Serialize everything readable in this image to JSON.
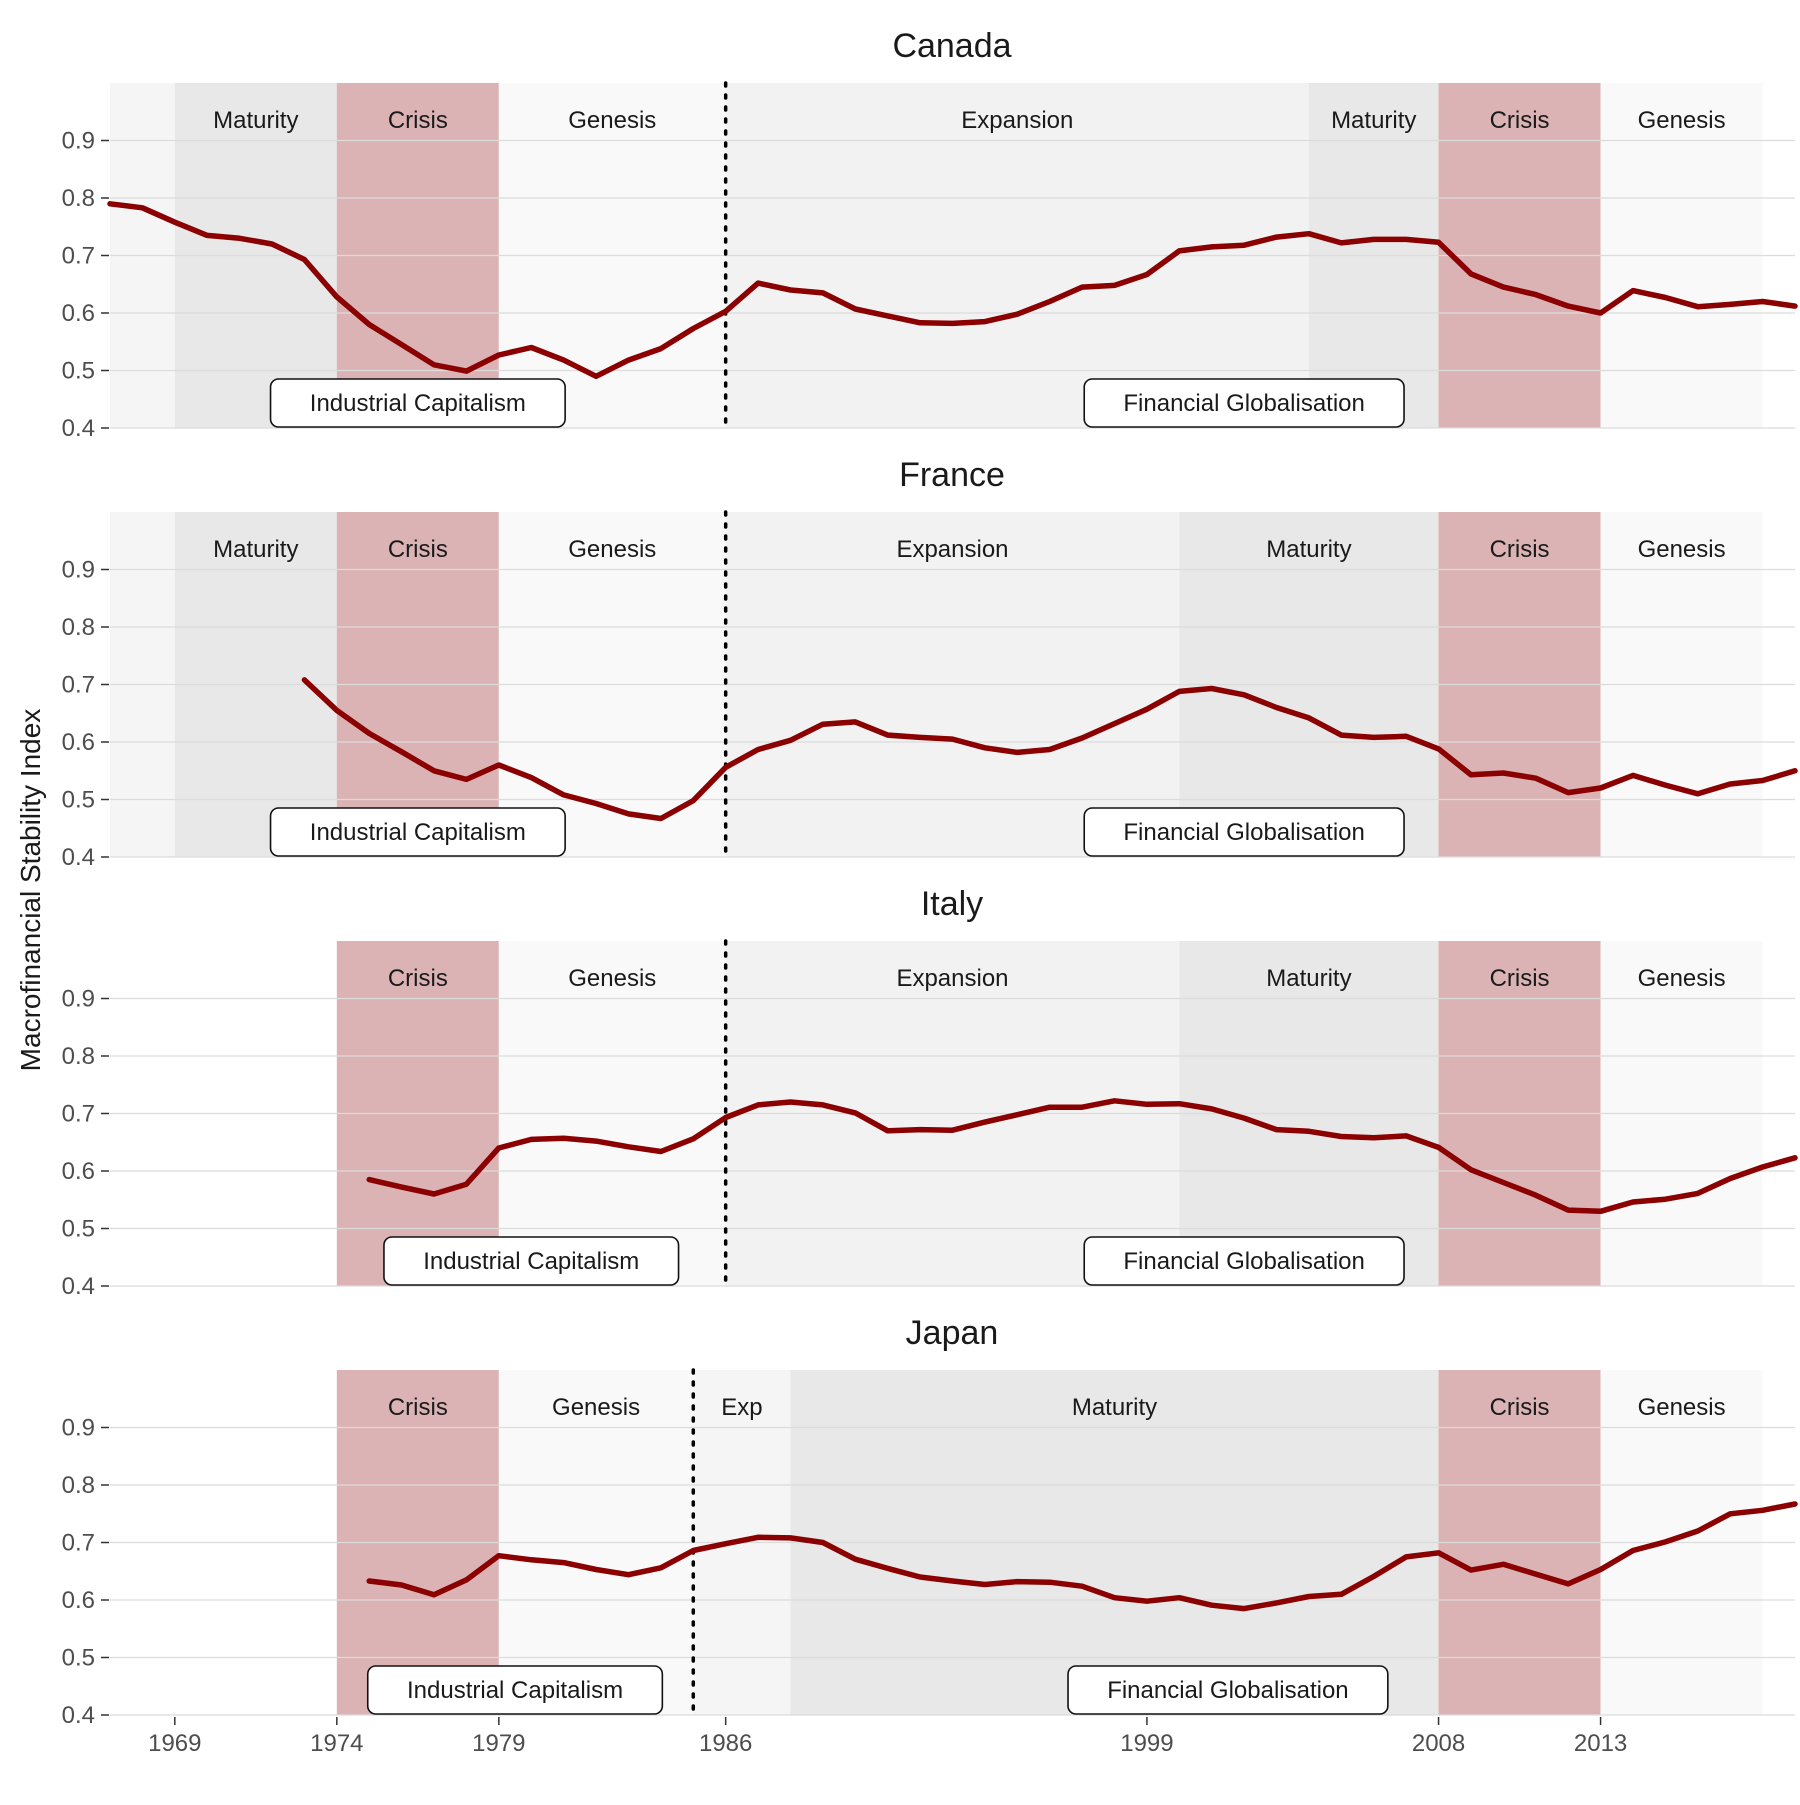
{
  "chart_data": {
    "type": "line",
    "ylabel": "Macrofinancial Stability Index",
    "xlabel": "",
    "x_ticks": [
      1969,
      1974,
      1979,
      1986,
      1999,
      2008,
      2013
    ],
    "y_ticks": [
      0.4,
      0.5,
      0.6,
      0.7,
      0.8,
      0.9
    ],
    "ylim": [
      0.4,
      1.0
    ],
    "xlim": [
      1967,
      2019
    ],
    "grid": true,
    "colors": {
      "line": "#8b0000",
      "crisis": "#dbb3b5",
      "maturity": "#e8e8e8",
      "genesis": "#f9f9f9",
      "expansion": "#f2f2f2",
      "edge": "#f5f5f5"
    },
    "panels": [
      {
        "title": "Canada",
        "regime_break": 1986,
        "phases": [
          {
            "label": "",
            "kind": "edge",
            "start": 1967,
            "end": 1969
          },
          {
            "label": "Maturity",
            "kind": "maturity",
            "start": 1969,
            "end": 1974
          },
          {
            "label": "Crisis",
            "kind": "crisis",
            "start": 1974,
            "end": 1979
          },
          {
            "label": "Genesis",
            "kind": "genesis",
            "start": 1979,
            "end": 1986
          },
          {
            "label": "Expansion",
            "kind": "expansion",
            "start": 1986,
            "end": 2004
          },
          {
            "label": "Maturity",
            "kind": "maturity",
            "start": 2004,
            "end": 2008
          },
          {
            "label": "Crisis",
            "kind": "crisis",
            "start": 2008,
            "end": 2013
          },
          {
            "label": "Genesis",
            "kind": "genesis",
            "start": 2013,
            "end": 2018
          },
          {
            "label": "",
            "kind": "edge",
            "start": 2018,
            "end": 2019
          }
        ],
        "eras": [
          {
            "label": "Industrial Capitalism",
            "x": 1976.5
          },
          {
            "label": "Financial Globalisation",
            "x": 2002
          }
        ],
        "series": {
          "x": [
            1967,
            1968,
            1969,
            1970,
            1971,
            1972,
            1973,
            1974,
            1975,
            1976,
            1977,
            1978,
            1979,
            1980,
            1981,
            1982,
            1983,
            1984,
            1985,
            1986,
            1987,
            1988,
            1989,
            1990,
            1991,
            1992,
            1993,
            1994,
            1995,
            1996,
            1997,
            1998,
            1999,
            2000,
            2001,
            2002,
            2003,
            2004,
            2005,
            2006,
            2007,
            2008,
            2009,
            2010,
            2011,
            2012,
            2013,
            2014,
            2015,
            2016,
            2017,
            2018,
            2019
          ],
          "y": [
            0.79,
            0.783,
            0.758,
            0.735,
            0.73,
            0.72,
            0.693,
            0.628,
            0.58,
            0.545,
            0.51,
            0.499,
            0.527,
            0.54,
            0.518,
            0.49,
            0.518,
            0.538,
            0.573,
            0.603,
            0.652,
            0.64,
            0.635,
            0.607,
            0.595,
            0.583,
            0.582,
            0.585,
            0.598,
            0.62,
            0.645,
            0.648,
            0.667,
            0.708,
            0.715,
            0.718,
            0.732,
            0.738,
            0.722,
            0.728,
            0.728,
            0.723,
            0.668,
            0.645,
            0.632,
            0.612,
            0.6,
            0.639,
            0.627,
            0.611,
            0.615,
            0.62,
            0.612
          ]
        }
      },
      {
        "title": "France",
        "regime_break": 1986,
        "phases": [
          {
            "label": "",
            "kind": "edge",
            "start": 1967,
            "end": 1969
          },
          {
            "label": "Maturity",
            "kind": "maturity",
            "start": 1969,
            "end": 1974
          },
          {
            "label": "Crisis",
            "kind": "crisis",
            "start": 1974,
            "end": 1979
          },
          {
            "label": "Genesis",
            "kind": "genesis",
            "start": 1979,
            "end": 1986
          },
          {
            "label": "Expansion",
            "kind": "expansion",
            "start": 1986,
            "end": 2000
          },
          {
            "label": "Maturity",
            "kind": "maturity",
            "start": 2000,
            "end": 2008
          },
          {
            "label": "Crisis",
            "kind": "crisis",
            "start": 2008,
            "end": 2013
          },
          {
            "label": "Genesis",
            "kind": "genesis",
            "start": 2013,
            "end": 2018
          },
          {
            "label": "",
            "kind": "edge",
            "start": 2018,
            "end": 2019
          }
        ],
        "eras": [
          {
            "label": "Industrial Capitalism",
            "x": 1976.5
          },
          {
            "label": "Financial Globalisation",
            "x": 2002
          }
        ],
        "series": {
          "x": [
            1973,
            1974,
            1975,
            1976,
            1977,
            1978,
            1979,
            1980,
            1981,
            1982,
            1983,
            1984,
            1985,
            1986,
            1987,
            1988,
            1989,
            1990,
            1991,
            1992,
            1993,
            1994,
            1995,
            1996,
            1997,
            1998,
            1999,
            2000,
            2001,
            2002,
            2003,
            2004,
            2005,
            2006,
            2007,
            2008,
            2009,
            2010,
            2011,
            2012,
            2013,
            2014,
            2015,
            2016,
            2017,
            2018,
            2019
          ],
          "y": [
            0.708,
            0.655,
            0.615,
            0.583,
            0.55,
            0.535,
            0.56,
            0.538,
            0.508,
            0.493,
            0.475,
            0.467,
            0.498,
            0.556,
            0.587,
            0.603,
            0.631,
            0.635,
            0.612,
            0.608,
            0.605,
            0.59,
            0.582,
            0.587,
            0.607,
            0.632,
            0.657,
            0.688,
            0.693,
            0.682,
            0.66,
            0.642,
            0.612,
            0.608,
            0.61,
            0.588,
            0.543,
            0.546,
            0.537,
            0.512,
            0.52,
            0.542,
            0.525,
            0.51,
            0.527,
            0.533,
            0.55
          ]
        }
      },
      {
        "title": "Italy",
        "regime_break": 1986,
        "phases": [
          {
            "label": "Crisis",
            "kind": "crisis",
            "start": 1974,
            "end": 1979
          },
          {
            "label": "Genesis",
            "kind": "genesis",
            "start": 1979,
            "end": 1986
          },
          {
            "label": "Expansion",
            "kind": "expansion",
            "start": 1986,
            "end": 2000
          },
          {
            "label": "Maturity",
            "kind": "maturity",
            "start": 2000,
            "end": 2008
          },
          {
            "label": "Crisis",
            "kind": "crisis",
            "start": 2008,
            "end": 2013
          },
          {
            "label": "Genesis",
            "kind": "genesis",
            "start": 2013,
            "end": 2018
          }
        ],
        "eras": [
          {
            "label": "Industrial Capitalism",
            "x": 1980
          },
          {
            "label": "Financial Globalisation",
            "x": 2002
          }
        ],
        "series": {
          "x": [
            1975,
            1976,
            1977,
            1978,
            1979,
            1980,
            1981,
            1982,
            1983,
            1984,
            1985,
            1986,
            1987,
            1988,
            1989,
            1990,
            1991,
            1992,
            1993,
            1994,
            1995,
            1996,
            1997,
            1998,
            1999,
            2000,
            2001,
            2002,
            2003,
            2004,
            2005,
            2006,
            2007,
            2008,
            2009,
            2010,
            2011,
            2012,
            2013,
            2014,
            2015,
            2016,
            2017,
            2018,
            2019
          ],
          "y": [
            0.585,
            0.572,
            0.56,
            0.577,
            0.64,
            0.655,
            0.657,
            0.652,
            0.642,
            0.634,
            0.656,
            0.693,
            0.715,
            0.72,
            0.715,
            0.701,
            0.67,
            0.672,
            0.671,
            0.685,
            0.698,
            0.711,
            0.711,
            0.722,
            0.716,
            0.717,
            0.708,
            0.692,
            0.672,
            0.669,
            0.66,
            0.658,
            0.661,
            0.641,
            0.602,
            0.58,
            0.558,
            0.532,
            0.53,
            0.546,
            0.551,
            0.561,
            0.587,
            0.607,
            0.623
          ]
        }
      },
      {
        "title": "Japan",
        "regime_break": 1985,
        "phases": [
          {
            "label": "Crisis",
            "kind": "crisis",
            "start": 1974,
            "end": 1979
          },
          {
            "label": "Genesis",
            "kind": "genesis",
            "start": 1979,
            "end": 1985
          },
          {
            "label": "Exp",
            "kind": "edge",
            "start": 1985,
            "end": 1988
          },
          {
            "label": "Maturity",
            "kind": "maturity",
            "start": 1988,
            "end": 2008
          },
          {
            "label": "Crisis",
            "kind": "crisis",
            "start": 2008,
            "end": 2013
          },
          {
            "label": "Genesis",
            "kind": "genesis",
            "start": 2013,
            "end": 2018
          }
        ],
        "eras": [
          {
            "label": "Industrial Capitalism",
            "x": 1979.5
          },
          {
            "label": "Financial Globalisation",
            "x": 2001.5
          }
        ],
        "series": {
          "x": [
            1975,
            1976,
            1977,
            1978,
            1979,
            1980,
            1981,
            1982,
            1983,
            1984,
            1985,
            1986,
            1987,
            1988,
            1989,
            1990,
            1991,
            1992,
            1993,
            1994,
            1995,
            1996,
            1997,
            1998,
            1999,
            2000,
            2001,
            2002,
            2003,
            2004,
            2005,
            2006,
            2007,
            2008,
            2009,
            2010,
            2011,
            2012,
            2013,
            2014,
            2015,
            2016,
            2017,
            2018,
            2019
          ],
          "y": [
            0.633,
            0.626,
            0.609,
            0.635,
            0.677,
            0.67,
            0.665,
            0.653,
            0.644,
            0.656,
            0.686,
            0.698,
            0.709,
            0.708,
            0.7,
            0.671,
            0.655,
            0.64,
            0.633,
            0.627,
            0.632,
            0.631,
            0.624,
            0.604,
            0.598,
            0.604,
            0.591,
            0.585,
            0.595,
            0.606,
            0.61,
            0.641,
            0.675,
            0.682,
            0.652,
            0.662,
            0.645,
            0.628,
            0.653,
            0.686,
            0.701,
            0.72,
            0.75,
            0.756,
            0.767
          ]
        }
      }
    ]
  }
}
